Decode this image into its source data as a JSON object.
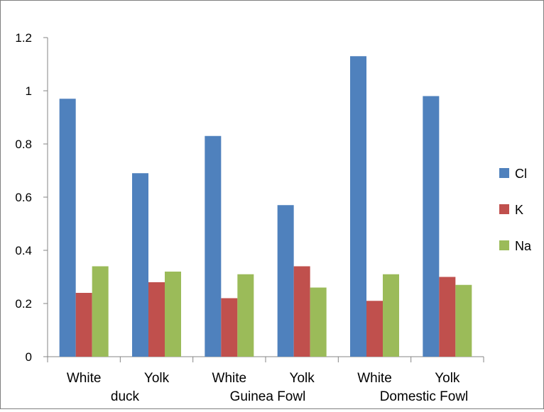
{
  "chart_data": {
    "type": "bar",
    "title": "",
    "xlabel": "",
    "ylabel": "",
    "ylim": [
      0,
      1.2
    ],
    "yticks": [
      "0",
      "0.2",
      "0.4",
      "0.6",
      "0.8",
      "1",
      "1.2"
    ],
    "categories": [
      "White",
      "Yolk",
      "White",
      "Yolk",
      "White",
      "Yolk"
    ],
    "groups": [
      "duck",
      "Guinea Fowl",
      "Domestic Fowl"
    ],
    "legend_position": "right",
    "grid": false,
    "series": [
      {
        "name": "Cl",
        "color": "#4f81bd",
        "values": [
          0.97,
          0.69,
          0.83,
          0.57,
          1.13,
          0.98
        ]
      },
      {
        "name": "K",
        "color": "#c0504d",
        "values": [
          0.24,
          0.28,
          0.22,
          0.34,
          0.21,
          0.3
        ]
      },
      {
        "name": "Na",
        "color": "#9bbb59",
        "values": [
          0.34,
          0.32,
          0.31,
          0.26,
          0.31,
          0.27
        ]
      }
    ]
  }
}
